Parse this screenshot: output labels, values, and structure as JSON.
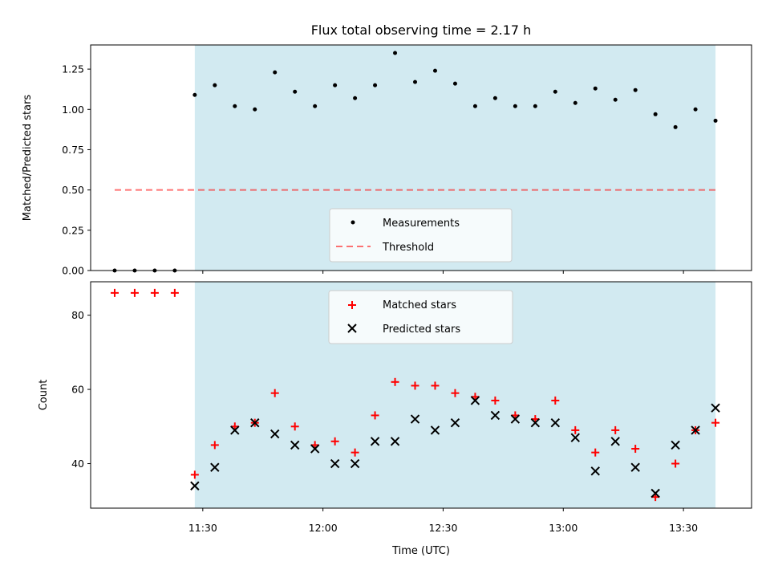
{
  "title": "Flux total observing time = 2.17 h",
  "colors": {
    "observing_band": "#add8e6",
    "measurement": "#000000",
    "threshold": "#ff0000",
    "matched": "#ff0000",
    "predicted": "#000000"
  },
  "chart_data": [
    {
      "type": "scatter",
      "panel": "top",
      "title": "Flux total observing time = 2.17 h",
      "xlabel": "",
      "ylabel": "Matched/Predicted stars",
      "xlim": [
        "11:02",
        "13:47"
      ],
      "ylim": [
        0,
        1.4
      ],
      "yticks": [
        "0.00",
        "0.25",
        "0.50",
        "0.75",
        "1.00",
        "1.25"
      ],
      "observing_window": [
        "11:28",
        "13:38"
      ],
      "legend": {
        "position": "lower center",
        "entries": [
          "Measurements",
          "Threshold"
        ]
      },
      "series": [
        {
          "name": "Measurements",
          "marker": "point",
          "x": [
            "11:08",
            "11:13",
            "11:18",
            "11:23",
            "11:28",
            "11:33",
            "11:38",
            "11:43",
            "11:48",
            "11:53",
            "11:58",
            "12:03",
            "12:08",
            "12:13",
            "12:18",
            "12:23",
            "12:28",
            "12:33",
            "12:38",
            "12:43",
            "12:48",
            "12:53",
            "12:58",
            "13:03",
            "13:08",
            "13:13",
            "13:18",
            "13:23",
            "13:28",
            "13:33",
            "13:38"
          ],
          "y": [
            0,
            0,
            0,
            0,
            1.09,
            1.15,
            1.02,
            1.0,
            1.23,
            1.11,
            1.02,
            1.15,
            1.07,
            1.15,
            1.35,
            1.17,
            1.24,
            1.16,
            1.02,
            1.07,
            1.02,
            1.02,
            1.11,
            1.04,
            1.13,
            1.06,
            1.12,
            0.97,
            0.89,
            1.0,
            0.93
          ]
        },
        {
          "name": "Threshold",
          "line": "dashed",
          "x": [
            "11:08",
            "13:38"
          ],
          "y": [
            0.5,
            0.5
          ]
        }
      ]
    },
    {
      "type": "scatter",
      "panel": "bottom",
      "xlabel": "Time (UTC)",
      "ylabel": "Count",
      "xlim": [
        "11:02",
        "13:47"
      ],
      "ylim": [
        28,
        89
      ],
      "xticks": [
        "11:30",
        "12:00",
        "12:30",
        "13:00",
        "13:30"
      ],
      "yticks": [
        "40",
        "60",
        "80"
      ],
      "observing_window": [
        "11:28",
        "13:38"
      ],
      "legend": {
        "position": "upper center",
        "entries": [
          "Matched stars",
          "Predicted stars"
        ]
      },
      "series": [
        {
          "name": "Matched stars",
          "marker": "plus",
          "x": [
            "11:08",
            "11:13",
            "11:18",
            "11:23",
            "11:28",
            "11:33",
            "11:38",
            "11:43",
            "11:48",
            "11:53",
            "11:58",
            "12:03",
            "12:08",
            "12:13",
            "12:18",
            "12:23",
            "12:28",
            "12:33",
            "12:38",
            "12:43",
            "12:48",
            "12:53",
            "12:58",
            "13:03",
            "13:08",
            "13:13",
            "13:18",
            "13:23",
            "13:28",
            "13:33",
            "13:38"
          ],
          "y": [
            86,
            86,
            86,
            86,
            37,
            45,
            50,
            51,
            59,
            50,
            45,
            46,
            43,
            53,
            62,
            61,
            61,
            59,
            58,
            57,
            53,
            52,
            57,
            49,
            43,
            49,
            44,
            31,
            40,
            49,
            51
          ]
        },
        {
          "name": "Predicted stars",
          "marker": "x",
          "x": [
            "11:28",
            "11:33",
            "11:38",
            "11:43",
            "11:48",
            "11:53",
            "11:58",
            "12:03",
            "12:08",
            "12:13",
            "12:18",
            "12:23",
            "12:28",
            "12:33",
            "12:38",
            "12:43",
            "12:48",
            "12:53",
            "12:58",
            "13:03",
            "13:08",
            "13:13",
            "13:18",
            "13:23",
            "13:28",
            "13:33",
            "13:38"
          ],
          "y": [
            34,
            39,
            49,
            51,
            48,
            45,
            44,
            40,
            40,
            46,
            46,
            52,
            49,
            51,
            57,
            53,
            52,
            51,
            51,
            47,
            38,
            46,
            39,
            32,
            45,
            49,
            55
          ]
        }
      ]
    }
  ]
}
